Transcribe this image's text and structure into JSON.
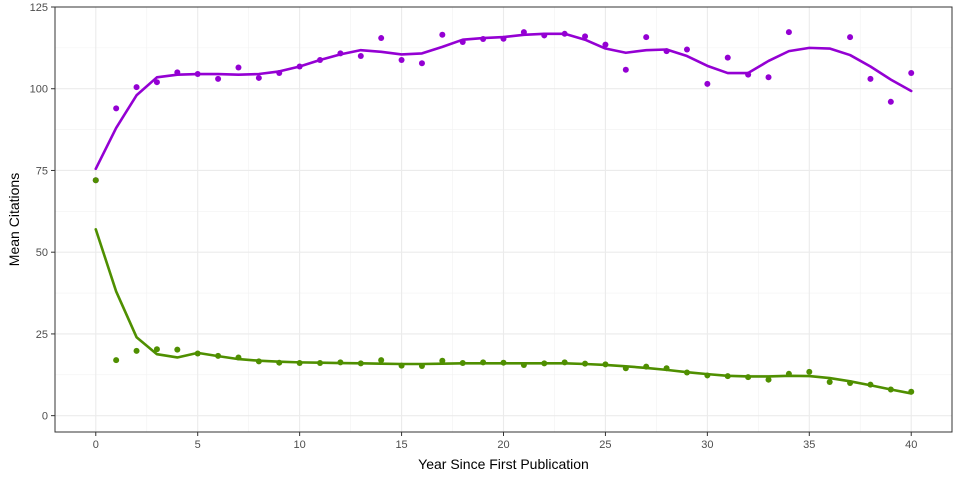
{
  "chart_data": {
    "type": "scatter",
    "xlabel": "Year Since First Publication",
    "ylabel": "Mean Citations",
    "xlim": [
      -2,
      42
    ],
    "ylim": [
      -5,
      125
    ],
    "xticks": [
      0,
      5,
      10,
      15,
      20,
      25,
      30,
      35,
      40
    ],
    "xtick_labels": [
      "0",
      "5",
      "10",
      "15",
      "20",
      "25",
      "30",
      "35",
      "40"
    ],
    "yticks": [
      0,
      25,
      50,
      75,
      100,
      125
    ],
    "ytick_labels": [
      "0",
      "25",
      "50",
      "75",
      "100",
      "125"
    ],
    "grid": true,
    "legend": "none",
    "series": [
      {
        "color": "#9400d3",
        "points_x": [
          0,
          1,
          2,
          3,
          4,
          5,
          6,
          7,
          8,
          9,
          10,
          11,
          12,
          13,
          14,
          15,
          16,
          17,
          18,
          19,
          20,
          21,
          22,
          23,
          24,
          25,
          26,
          27,
          28,
          29,
          30,
          31,
          32,
          33,
          34,
          35,
          36,
          37,
          38,
          39,
          40
        ],
        "points_y": [
          72,
          94,
          100.5,
          102,
          105,
          104.5,
          103,
          106.5,
          103.3,
          104.8,
          106.8,
          108.8,
          110.8,
          110,
          115.5,
          108.8,
          107.8,
          116.5,
          114.3,
          115.2,
          115.3,
          117.3,
          116.3,
          116.8,
          116,
          113.5,
          105.8,
          115.8,
          111.5,
          112,
          101.5,
          109.5,
          104.3,
          103.5,
          117.3,
          null,
          null,
          115.8,
          103,
          96,
          104.8
        ],
        "smooth_x": [
          0,
          1,
          2,
          3,
          4,
          5,
          6,
          7,
          8,
          9,
          10,
          11,
          12,
          13,
          14,
          15,
          16,
          17,
          18,
          19,
          20,
          21,
          22,
          23,
          24,
          25,
          26,
          27,
          28,
          29,
          30,
          31,
          32,
          33,
          34,
          35,
          36,
          37,
          38,
          39,
          40
        ],
        "smooth_y": [
          75.5,
          88,
          98,
          103.5,
          104.3,
          104.5,
          104.5,
          104.3,
          104.5,
          105.3,
          106.8,
          108.8,
          110.5,
          111.8,
          111.3,
          110.5,
          110.8,
          112.8,
          115,
          115.5,
          115.8,
          116.5,
          116.8,
          116.8,
          115,
          112.3,
          111,
          111.8,
          112,
          110,
          107,
          104.8,
          104.8,
          108.5,
          111.5,
          112.5,
          112.3,
          110.3,
          106.8,
          102.8,
          99.3
        ]
      },
      {
        "color": "#4f8f00",
        "points_x": [
          0,
          1,
          2,
          3,
          4,
          5,
          6,
          7,
          8,
          9,
          10,
          11,
          12,
          13,
          14,
          15,
          16,
          17,
          18,
          19,
          20,
          21,
          22,
          23,
          24,
          25,
          26,
          27,
          28,
          29,
          30,
          31,
          32,
          33,
          34,
          35,
          36,
          37,
          38,
          39,
          40
        ],
        "points_y": [
          72,
          17,
          19.8,
          20.3,
          20.2,
          19,
          18.3,
          17.8,
          16.6,
          16.2,
          16.1,
          16.1,
          16.3,
          16,
          17,
          15.3,
          15.2,
          16.8,
          16.1,
          16.3,
          16.2,
          15.5,
          16,
          16.3,
          15.9,
          15.7,
          14.5,
          15,
          14.5,
          13.2,
          12.3,
          12.1,
          11.8,
          11,
          12.8,
          13.4,
          10.3,
          10,
          9.5,
          8,
          7.3
        ],
        "smooth_x": [
          0,
          1,
          2,
          3,
          4,
          5,
          6,
          7,
          8,
          9,
          10,
          11,
          12,
          13,
          14,
          15,
          16,
          17,
          18,
          19,
          20,
          21,
          22,
          23,
          24,
          25,
          26,
          27,
          28,
          29,
          30,
          31,
          32,
          33,
          34,
          35,
          36,
          37,
          38,
          39,
          40
        ],
        "smooth_y": [
          57,
          38,
          24,
          18.8,
          17.8,
          19.2,
          18.2,
          17.3,
          16.8,
          16.5,
          16.3,
          16.2,
          16.1,
          16,
          15.9,
          15.8,
          15.8,
          15.9,
          16,
          16,
          16,
          16,
          16,
          16,
          15.8,
          15.5,
          15.1,
          14.6,
          14,
          13.3,
          12.7,
          12.2,
          12,
          12,
          12.2,
          12.1,
          11.5,
          10.5,
          9.3,
          8,
          6.8
        ]
      }
    ]
  }
}
